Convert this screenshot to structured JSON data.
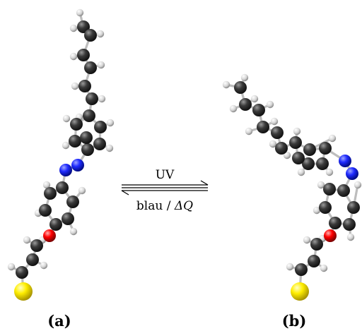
{
  "labels": {
    "panel_a": "(a)",
    "panel_b": "(b)",
    "arrow_top": "UV",
    "arrow_bottom_text": "blau / ",
    "arrow_bottom_symbol": "ΔQ"
  },
  "colors": {
    "carbon": "#3a3a3a",
    "hydrogen": "#dcdcdc",
    "nitrogen": "#1f2bff",
    "oxygen": "#ff0000",
    "sulfur": "#ffee00",
    "arrow": "#000000"
  },
  "molecules": [
    {
      "name": "trans-azobenzene",
      "label_key": "panel_a"
    },
    {
      "name": "cis-azobenzene",
      "label_key": "panel_b"
    }
  ]
}
